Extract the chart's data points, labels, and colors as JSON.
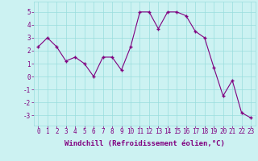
{
  "x": [
    0,
    1,
    2,
    3,
    4,
    5,
    6,
    7,
    8,
    9,
    10,
    11,
    12,
    13,
    14,
    15,
    16,
    17,
    18,
    19,
    20,
    21,
    22,
    23
  ],
  "y": [
    2.3,
    3.0,
    2.3,
    1.2,
    1.5,
    1.0,
    0.0,
    1.5,
    1.5,
    0.5,
    2.3,
    5.0,
    5.0,
    3.7,
    5.0,
    5.0,
    4.7,
    3.5,
    3.0,
    0.7,
    -1.5,
    -0.3,
    -2.8,
    -3.2
  ],
  "line_color": "#800080",
  "marker": "+",
  "markersize": 3.5,
  "linewidth": 0.8,
  "bg_color": "#ccf2f2",
  "grid_color": "#99dddd",
  "xlabel": "Windchill (Refroidissement éolien,°C)",
  "xlabel_fontsize": 6.5,
  "xtick_labels": [
    "0",
    "1",
    "2",
    "3",
    "4",
    "5",
    "6",
    "7",
    "8",
    "9",
    "10",
    "11",
    "12",
    "13",
    "14",
    "15",
    "16",
    "17",
    "18",
    "19",
    "20",
    "21",
    "22",
    "23"
  ],
  "ytick_vals": [
    -3,
    -2,
    -1,
    0,
    1,
    2,
    3,
    4,
    5
  ],
  "ytick_labels": [
    "-3",
    "-2",
    "-1",
    "0",
    "1",
    "2",
    "3",
    "4",
    "5"
  ],
  "ylim": [
    -3.8,
    5.8
  ],
  "xlim": [
    -0.5,
    23.5
  ],
  "tick_fontsize": 5.5
}
